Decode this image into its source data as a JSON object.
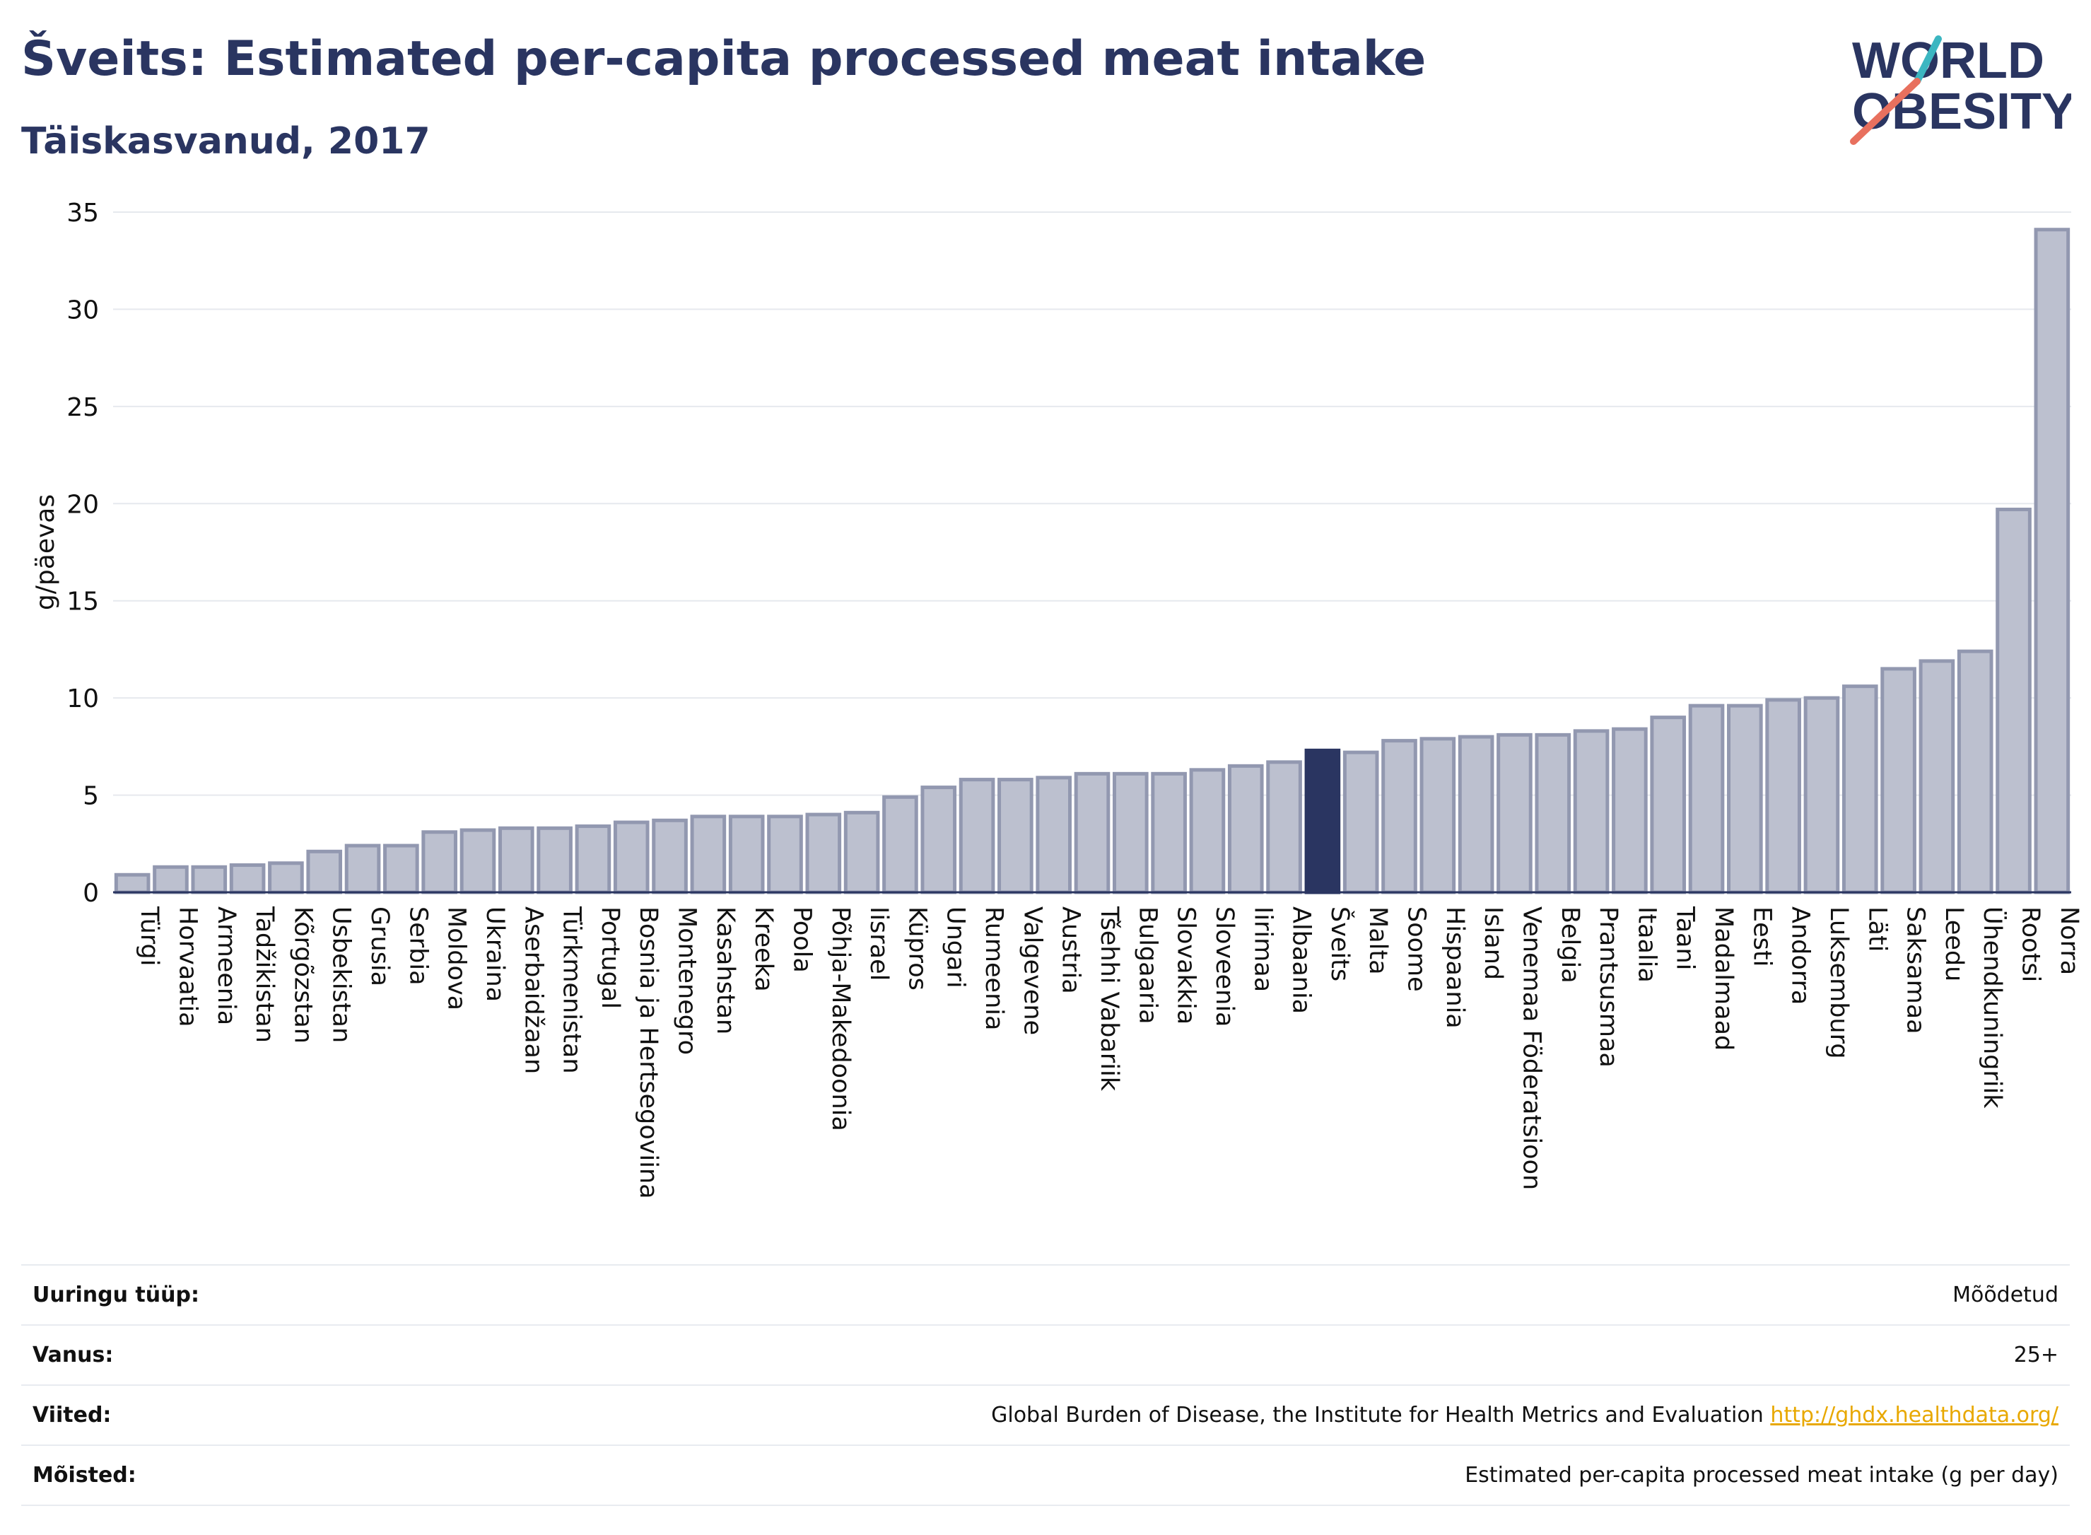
{
  "header": {
    "title": "Šveits: Estimated per-capita processed meat intake",
    "subtitle": "Täiskasvanud, 2017"
  },
  "logo": {
    "line1": "WORLD",
    "line2": "OBESITY"
  },
  "colors": {
    "highlight": "#2a3561",
    "bar_fill": "#bcc0cf",
    "bar_stroke": "#9298b0",
    "grid": "#e6e9ee",
    "logo_teal": "#3cb6c1",
    "logo_coral": "#e8705e"
  },
  "chart_data": {
    "type": "bar",
    "ylabel": "g/päevas",
    "ylim": [
      0,
      35
    ],
    "yticks": [
      0,
      5,
      10,
      15,
      20,
      25,
      30,
      35
    ],
    "highlight": "Šveits",
    "grid": true,
    "categories": [
      "Türgi",
      "Horvaatia",
      "Armeenia",
      "Tadžikistan",
      "Kõrgõzstan",
      "Usbekistan",
      "Grusia",
      "Serbia",
      "Moldova",
      "Ukraina",
      "Aserbaidžaan",
      "Türkmenistan",
      "Portugal",
      "Bosnia ja Hertsegoviina",
      "Montenegro",
      "Kasahstan",
      "Kreeka",
      "Poola",
      "Põhja-Makedoonia",
      "Iisrael",
      "Küpros",
      "Ungari",
      "Rumeenia",
      "Valgevene",
      "Austria",
      "Tšehhi Vabariik",
      "Bulgaaria",
      "Slovakkia",
      "Sloveenia",
      "Iirimaa",
      "Albaania",
      "Šveits",
      "Malta",
      "Soome",
      "Hispaania",
      "Island",
      "Venemaa Föderatsioon",
      "Belgia",
      "Prantsusmaa",
      "Itaalia",
      "Taani",
      "Madalmaad",
      "Eesti",
      "Andorra",
      "Luksemburg",
      "Läti",
      "Saksamaa",
      "Leedu",
      "Ühendkuningriik",
      "Rootsi",
      "Norra"
    ],
    "values": [
      0.9,
      1.3,
      1.3,
      1.4,
      1.5,
      2.1,
      2.4,
      2.4,
      3.1,
      3.2,
      3.3,
      3.3,
      3.4,
      3.6,
      3.7,
      3.9,
      3.9,
      3.9,
      4.0,
      4.1,
      4.9,
      5.4,
      5.8,
      5.8,
      5.9,
      6.1,
      6.1,
      6.1,
      6.3,
      6.5,
      6.7,
      7.3,
      7.2,
      7.8,
      7.9,
      8.0,
      8.1,
      8.1,
      8.3,
      8.4,
      9.0,
      9.6,
      9.6,
      9.9,
      10.0,
      10.6,
      11.5,
      11.9,
      12.4,
      19.7,
      34.1
    ]
  },
  "meta": [
    {
      "label": "Uuringu tüüp:",
      "value": "Mõõdetud"
    },
    {
      "label": "Vanus:",
      "value": "25+"
    },
    {
      "label": "Viited:",
      "value": "Global Burden of Disease, the Institute for Health Metrics and Evaluation",
      "link": "http://ghdx.healthdata.org/"
    },
    {
      "label": "Mõisted:",
      "value": "Estimated per-capita processed meat intake (g per day)"
    }
  ]
}
